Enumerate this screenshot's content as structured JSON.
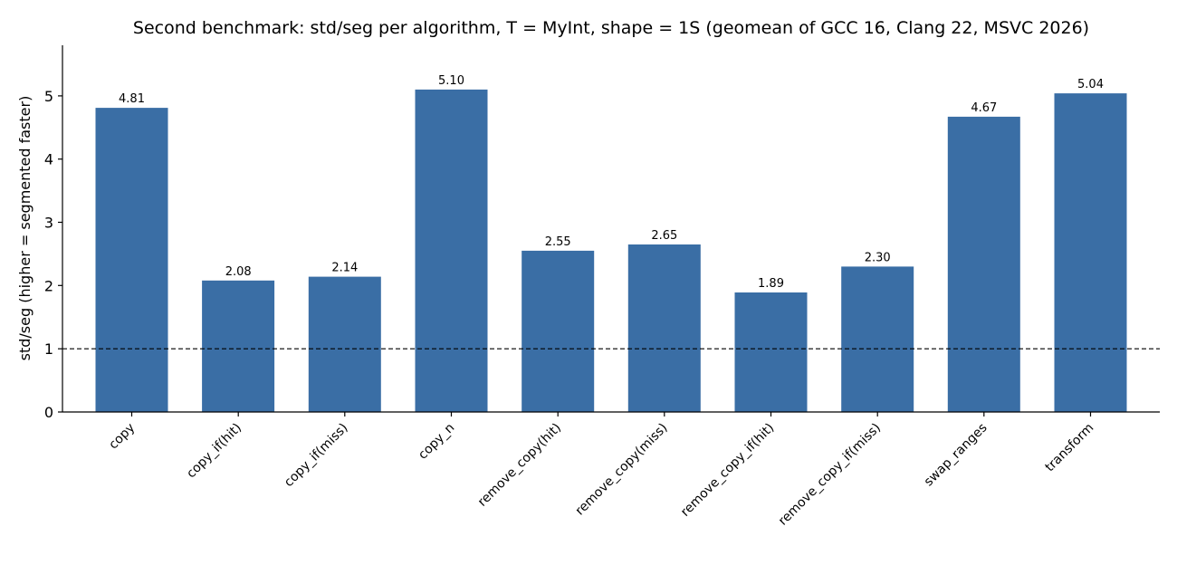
{
  "chart_data": {
    "type": "bar",
    "title": "Second benchmark: std/seg per algorithm, T = MyInt, shape = 1S (geomean of GCC 16, Clang 22, MSVC 2026)",
    "xlabel": "",
    "ylabel": "std/seg  (higher = segmented faster)",
    "categories": [
      "copy",
      "copy_if(hit)",
      "copy_if(miss)",
      "copy_n",
      "remove_copy(hit)",
      "remove_copy(miss)",
      "remove_copy_if(hit)",
      "remove_copy_if(miss)",
      "swap_ranges",
      "transform"
    ],
    "values": [
      4.81,
      2.08,
      2.14,
      5.1,
      2.55,
      2.65,
      1.89,
      2.3,
      4.67,
      5.04
    ],
    "data_labels": [
      "4.81",
      "2.08",
      "2.14",
      "5.10",
      "2.55",
      "2.65",
      "1.89",
      "2.30",
      "4.67",
      "5.04"
    ],
    "ylim": [
      0,
      5.8
    ],
    "yticks": [
      0,
      1,
      2,
      3,
      4,
      5
    ],
    "reference_line": 1,
    "bar_color": "#3a6ea5",
    "grid": false,
    "legend": "none"
  }
}
